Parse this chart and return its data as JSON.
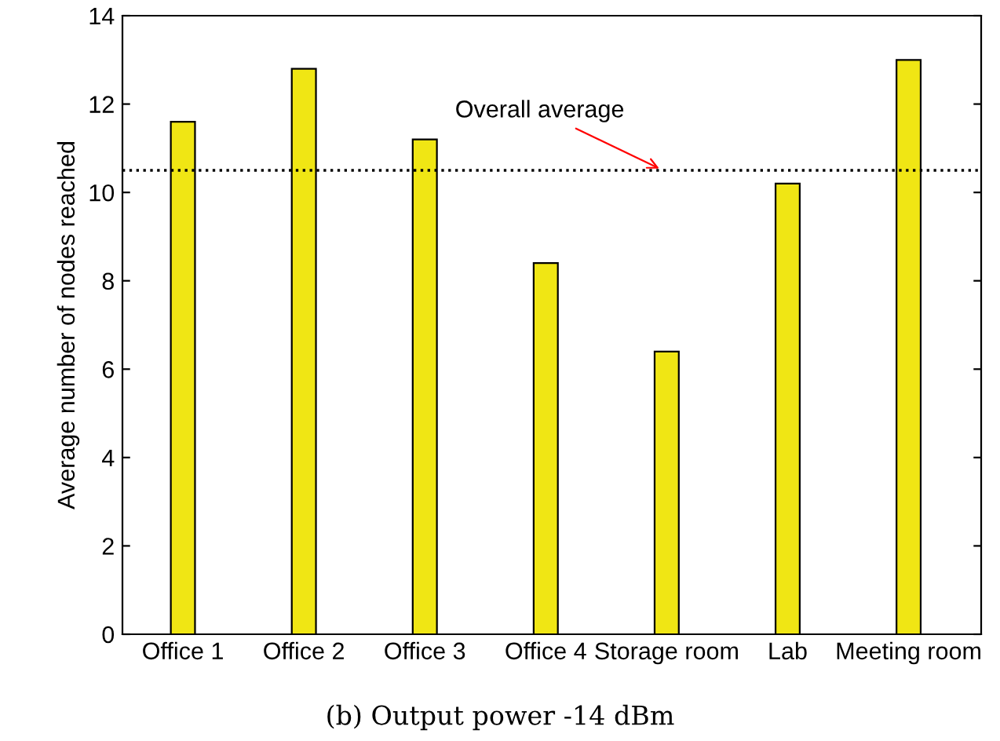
{
  "chart_data": {
    "type": "bar",
    "ylabel": "Average number of nodes reached",
    "categories": [
      "Office 1",
      "Office 2",
      "Office 3",
      "Office 4",
      "Storage room",
      "Lab",
      "Meeting room"
    ],
    "values": [
      11.6,
      12.8,
      11.2,
      8.4,
      6.4,
      10.2,
      13.0
    ],
    "color": "#f0e614",
    "ylim": [
      0,
      14
    ],
    "yticks": [
      0,
      2,
      4,
      6,
      8,
      10,
      12,
      14
    ],
    "grid": false,
    "ref_lines": [
      {
        "axis": "y",
        "value": 10.5,
        "color": "#000000",
        "line_style": "dotted"
      }
    ],
    "annotations": [
      {
        "text": "Overall average",
        "x": "Storage room",
        "y": 10.5
      },
      "(b) Output power -14 dBm"
    ]
  }
}
